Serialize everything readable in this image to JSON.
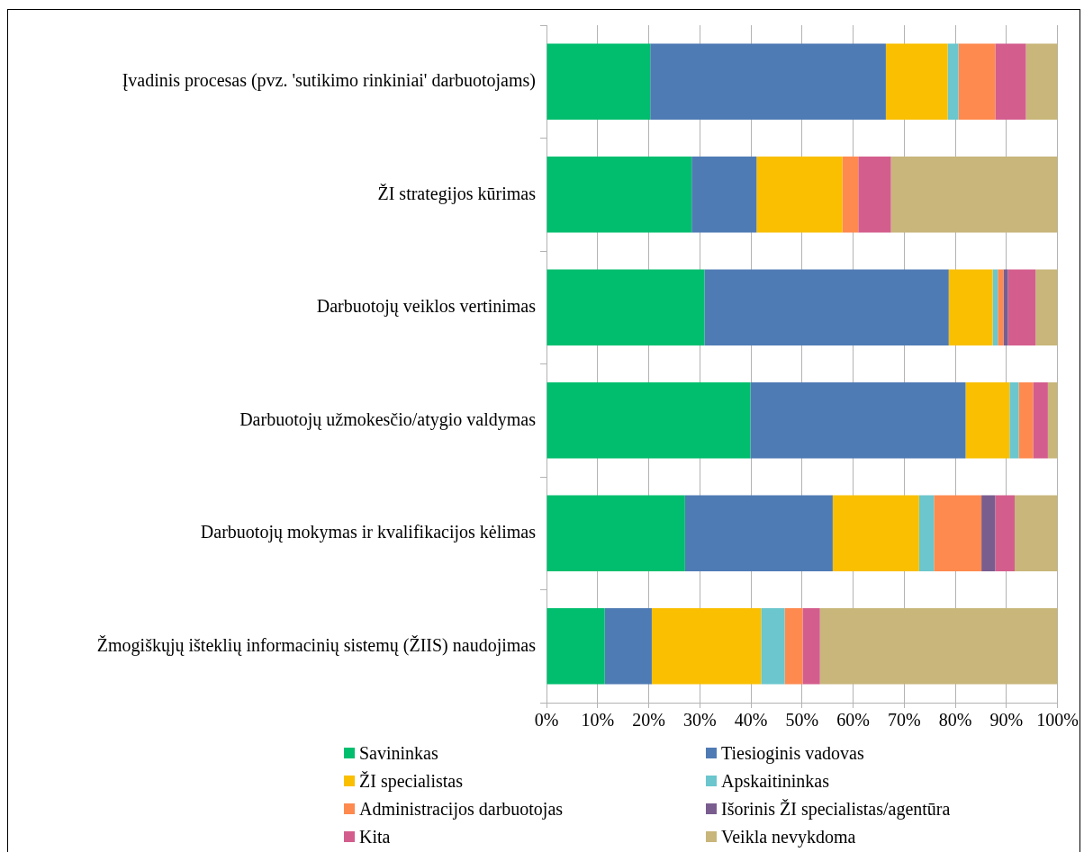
{
  "chart_data": {
    "type": "bar",
    "orientation": "horizontal",
    "stacked": true,
    "categories": [
      "Įvadinis procesas (pvz. 'sutikimo rinkiniai' darbuotojams)",
      "ŽI strategijos kūrimas",
      "Darbuotojų veiklos vertinimas",
      "Darbuotojų užmokesčio/atygio valdymas",
      "Darbuotojų mokymas ir kvalifikacijos kėlimas",
      "Žmogiškųjų išteklių informacinių sistemų (ŽIIS) naudojimas"
    ],
    "series": [
      {
        "name": "Savininkas",
        "color": "#00be6e",
        "values": [
          20.3,
          28.4,
          30.9,
          39.9,
          27.1,
          11.4
        ]
      },
      {
        "name": "Tiesioginis vadovas",
        "color": "#4f7bb4",
        "values": [
          46.1,
          12.7,
          47.8,
          42.1,
          28.9,
          9.2
        ]
      },
      {
        "name": "ŽI specialistas",
        "color": "#f9bf00",
        "values": [
          12.1,
          16.8,
          8.6,
          8.6,
          16.9,
          21.4
        ]
      },
      {
        "name": "Apskaitininkas",
        "color": "#6bc6cd",
        "values": [
          2.1,
          0,
          1.0,
          1.8,
          2.9,
          4.6
        ]
      },
      {
        "name": "Administracijos darbuotojas",
        "color": "#fe8a4f",
        "values": [
          7.2,
          3.1,
          1.1,
          2.8,
          9.3,
          3.5
        ]
      },
      {
        "name": "Išorinis ŽI specialistas/agentūra",
        "color": "#7a5d8f",
        "values": [
          0,
          0,
          0.9,
          0,
          2.7,
          0
        ]
      },
      {
        "name": "Kita",
        "color": "#d35e8d",
        "values": [
          6.0,
          6.4,
          5.4,
          2.9,
          3.8,
          3.4
        ]
      },
      {
        "name": "Veikla nevykdoma",
        "color": "#c8b67a",
        "values": [
          6.2,
          32.6,
          4.3,
          1.9,
          8.4,
          46.5
        ]
      }
    ],
    "xlim": [
      0,
      100
    ],
    "xticks": [
      {
        "value": 0,
        "label": "0%"
      },
      {
        "value": 10,
        "label": "10%"
      },
      {
        "value": 20,
        "label": "20%"
      },
      {
        "value": 30,
        "label": "30%"
      },
      {
        "value": 40,
        "label": "40%"
      },
      {
        "value": 50,
        "label": "50%"
      },
      {
        "value": 60,
        "label": "60%"
      },
      {
        "value": 70,
        "label": "70%"
      },
      {
        "value": 80,
        "label": "80%"
      },
      {
        "value": 90,
        "label": "90%"
      },
      {
        "value": 100,
        "label": "100%"
      }
    ],
    "grid": "x",
    "legend": "bottom"
  }
}
